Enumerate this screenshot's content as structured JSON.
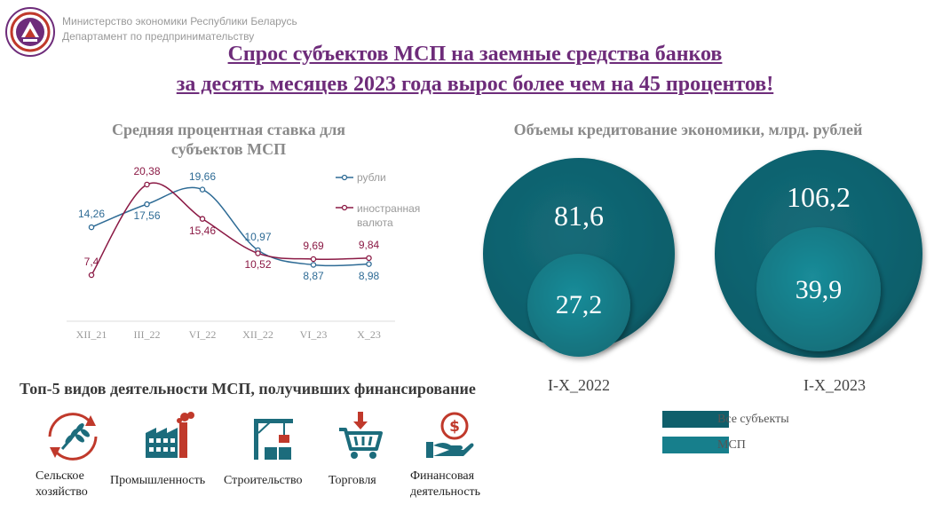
{
  "header": {
    "org_line1": "Министерство экономики Республики Беларусь",
    "org_line2": "Департамент по предпринимательству",
    "title_line1": "Спрос субъектов МСП на заемные средства банков",
    "title_line2": "за десять месяцев 2023 года вырос более чем на 45 процентов!"
  },
  "colors": {
    "title": "#6e2c7a",
    "rub": "#2e6b95",
    "fx": "#8b1a45",
    "all_subjects": "#0f5f6b",
    "msp": "#177f8c"
  },
  "rate_chart": {
    "title_line1": "Средняя процентная ставка для",
    "title_line2": "субъектов МСП"
  },
  "volume_chart": {
    "title": "Объемы кредитование экономики, млрд. рублей"
  },
  "chart_data": [
    {
      "type": "line",
      "title": "Средняя процентная ставка для субъектов МСП",
      "categories": [
        "XII_21",
        "III_22",
        "VI_22",
        "XII_22",
        "VI_23",
        "X_23"
      ],
      "series": [
        {
          "name": "рубли",
          "values": [
            14.26,
            17.56,
            19.66,
            10.97,
            8.87,
            8.98
          ],
          "labels": [
            "14,26",
            "17,56",
            "19,66",
            "10,97",
            "8,87",
            "8,98"
          ]
        },
        {
          "name": "иностранная валюта",
          "values": [
            7.4,
            20.38,
            15.46,
            10.52,
            9.69,
            9.84
          ],
          "labels": [
            "7,4",
            "20,38",
            "15,46",
            "10,52",
            "9,69",
            "9,84"
          ]
        }
      ],
      "legend": "right",
      "grid": false
    },
    {
      "type": "bubble",
      "title": "Объемы кредитование экономики, млрд. рублей",
      "categories": [
        "I-X_2022",
        "I-X_2023"
      ],
      "series": [
        {
          "name": "Все субъекты",
          "values": [
            81.6,
            106.2
          ],
          "labels": [
            "81,6",
            "106,2"
          ]
        },
        {
          "name": "МСП",
          "values": [
            27.2,
            39.9
          ],
          "labels": [
            "27,2",
            "39,9"
          ]
        }
      ],
      "legend": "bottom-right"
    }
  ],
  "top5": {
    "title": "Топ-5 видов деятельности МСП, получивших финансирование",
    "items": [
      {
        "line1": "Сельское",
        "line2": "хозяйство",
        "icon": "wheat-cycle-icon"
      },
      {
        "line1": "Промышленность",
        "line2": "",
        "icon": "factory-icon"
      },
      {
        "line1": "Строительство",
        "line2": "",
        "icon": "crane-icon"
      },
      {
        "line1": "Торговля",
        "line2": "",
        "icon": "shopping-cart-icon"
      },
      {
        "line1": "Финансовая",
        "line2": "деятельность",
        "icon": "money-hand-icon"
      }
    ]
  }
}
